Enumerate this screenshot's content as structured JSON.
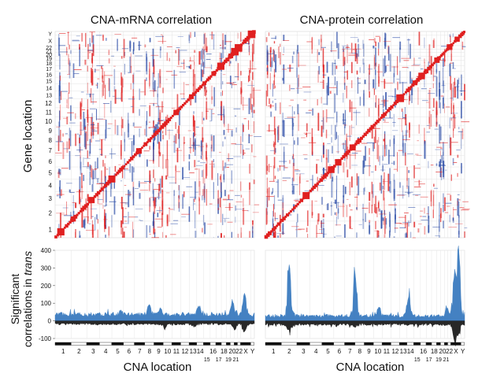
{
  "figure": {
    "ylabel_top": "Gene location",
    "ylabel_bottom_line1": "Significant",
    "ylabel_bottom_line2_prefix": "correlations in ",
    "ylabel_bottom_line2_italic": "trans"
  },
  "chart_data": [
    {
      "type": "heatmap",
      "title": "CNA-mRNA correlation",
      "xlabel": "",
      "ylabel": "Gene location",
      "y_ticks": [
        "1",
        "2",
        "3",
        "4",
        "5",
        "6",
        "7",
        "8",
        "9",
        "10",
        "11",
        "12",
        "13",
        "14",
        "15",
        "16",
        "17",
        "18",
        "19",
        "20",
        "21",
        "22",
        "X",
        "Y"
      ],
      "colors": {
        "positive": "#e02020",
        "negative": "#2f4fa8",
        "background": "#ffffff"
      },
      "diagonal": "strong positive (red) cis correlations along diagonal",
      "noise_seed": 7
    },
    {
      "type": "heatmap",
      "title": "CNA-protein correlation",
      "xlabel": "",
      "ylabel": "",
      "y_ticks": [],
      "colors": {
        "positive": "#e02020",
        "negative": "#2f4fa8",
        "background": "#ffffff"
      },
      "diagonal": "strong positive (red) cis correlations along diagonal",
      "noise_seed": 19
    },
    {
      "type": "area",
      "xlabel": "CNA location",
      "ylabel": "Significant correlations in trans",
      "ylim": [
        -100,
        400
      ],
      "y_ticks": [
        -100,
        0,
        100,
        200,
        300,
        400
      ],
      "x_ticks_top_row": [
        "1",
        "2",
        "3",
        "4",
        "5",
        "6",
        "7",
        "8",
        "9",
        "10",
        "11",
        "12",
        "13",
        "14",
        "16",
        "18",
        "20",
        "22",
        "X",
        "Y"
      ],
      "x_ticks_bottom_row": [
        "15",
        "17",
        "19",
        "21"
      ],
      "series": [
        {
          "color": "#3a7bbf",
          "peaks": [
            [
              0.11,
              55
            ],
            [
              0.33,
              58
            ],
            [
              0.47,
              100
            ],
            [
              0.53,
              75
            ],
            [
              0.72,
              95
            ],
            [
              0.89,
              120
            ],
            [
              0.95,
              155
            ]
          ],
          "base": 45
        },
        {
          "color": "#111111",
          "peaks": [
            [
              0.55,
              -45
            ],
            [
              0.7,
              -40
            ],
            [
              0.9,
              -55
            ],
            [
              0.95,
              -70
            ]
          ],
          "base": -22
        }
      ],
      "noise_seed": 3
    },
    {
      "type": "area",
      "xlabel": "CNA location",
      "ylabel": "",
      "ylim": [
        -100,
        400
      ],
      "x_ticks_top_row": [
        "1",
        "2",
        "3",
        "4",
        "5",
        "6",
        "7",
        "8",
        "9",
        "10",
        "11",
        "12",
        "13",
        "14",
        "16",
        "18",
        "20",
        "22",
        "X",
        "Y"
      ],
      "x_ticks_bottom_row": [
        "15",
        "17",
        "19",
        "21"
      ],
      "series": [
        {
          "color": "#3a7bbf",
          "peaks": [
            [
              0.12,
              330
            ],
            [
              0.45,
              270
            ],
            [
              0.57,
              85
            ],
            [
              0.72,
              150
            ],
            [
              0.91,
              80
            ],
            [
              0.95,
              290
            ],
            [
              0.97,
              390
            ]
          ],
          "base": 35
        },
        {
          "color": "#111111",
          "peaks": [
            [
              0.12,
              -60
            ],
            [
              0.45,
              -40
            ],
            [
              0.95,
              -115
            ],
            [
              0.97,
              -80
            ]
          ],
          "base": -25
        }
      ],
      "noise_seed": 11
    }
  ]
}
